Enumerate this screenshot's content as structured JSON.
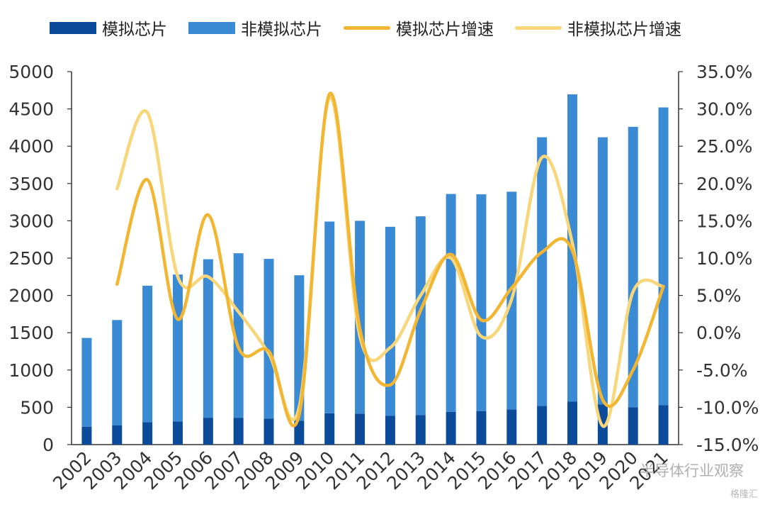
{
  "chart_data": {
    "type": "bar",
    "categories": [
      "2002",
      "2003",
      "2004",
      "2005",
      "2006",
      "2007",
      "2008",
      "2009",
      "2010",
      "2011",
      "2012",
      "2013",
      "2014",
      "2015",
      "2016",
      "2017",
      "2018",
      "2019",
      "2020",
      "2021"
    ],
    "series": [
      {
        "name": "模拟芯片",
        "type": "bar",
        "stack": "total",
        "color": "#0c4a9a",
        "values": [
          240,
          260,
          300,
          310,
          360,
          360,
          350,
          320,
          420,
          415,
          385,
          395,
          440,
          450,
          470,
          520,
          575,
          540,
          500,
          530
        ]
      },
      {
        "name": "非模拟芯片",
        "type": "bar",
        "stack": "total",
        "color": "#3a8ad4",
        "values": [
          1190,
          1410,
          1830,
          1970,
          2125,
          2205,
          2140,
          1950,
          2570,
          2585,
          2535,
          2665,
          2920,
          2905,
          2920,
          3600,
          4120,
          3580,
          3760,
          3990
        ]
      },
      {
        "name": "模拟芯片增速",
        "type": "line",
        "axis": "right",
        "color": "#f2b632",
        "values": [
          null,
          6.5,
          20.5,
          1.8,
          15.8,
          -2.0,
          -2.5,
          -11.0,
          32.0,
          0.5,
          -7.0,
          3.0,
          10.5,
          1.7,
          6.0,
          10.8,
          11.0,
          -9.0,
          -5.0,
          6.2
        ]
      },
      {
        "name": "非模拟芯片增速",
        "type": "line",
        "axis": "right",
        "color": "#f8d67a",
        "values": [
          null,
          19.3,
          29.5,
          7.5,
          7.5,
          2.8,
          -2.8,
          -10.0,
          31.5,
          -0.5,
          -2.0,
          5.0,
          10.0,
          -0.5,
          4.5,
          23.5,
          12.0,
          -12.5,
          5.5,
          6.2
        ]
      }
    ],
    "y_left": {
      "min": 0,
      "max": 5000,
      "ticks": [
        "0",
        "500",
        "1000",
        "1500",
        "2000",
        "2500",
        "3000",
        "3500",
        "4000",
        "4500",
        "5000"
      ]
    },
    "y_right": {
      "min": -15,
      "max": 35,
      "ticks": [
        "-15.0%",
        "-10.0%",
        "-5.0%",
        "0.0%",
        "5.0%",
        "10.0%",
        "15.0%",
        "20.0%",
        "25.0%",
        "30.0%",
        "35.0%"
      ]
    },
    "grid": false,
    "legend_position": "top"
  },
  "watermark": "半导体行业观察",
  "watermark2": "格隆汇"
}
